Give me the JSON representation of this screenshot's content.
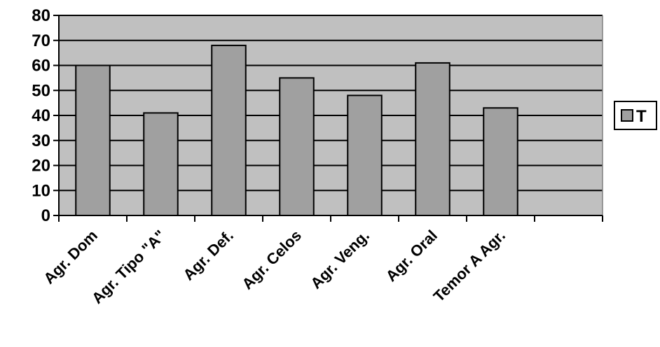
{
  "chart_data": {
    "type": "bar",
    "categories": [
      "Agr. Dom",
      "Agr. Tipo \"A\"",
      "Agr. Def.",
      "Agr. Celos",
      "Agr. Veng.",
      "Agr. Oral",
      "Temor A Agr."
    ],
    "series": [
      {
        "name": "T",
        "values": [
          60,
          41,
          68,
          55,
          48,
          61,
          43
        ]
      }
    ],
    "slot_count": 8,
    "ylim": [
      0,
      80
    ],
    "yticks": [
      "0",
      "10",
      "20",
      "30",
      "40",
      "50",
      "60",
      "70",
      "80"
    ],
    "grid": true,
    "legend_position": "right",
    "colors": {
      "plot_background": "#c0c0c0",
      "bar_fill": "#a0a0a0",
      "bar_stroke": "#000000",
      "gridline": "#000000"
    }
  }
}
